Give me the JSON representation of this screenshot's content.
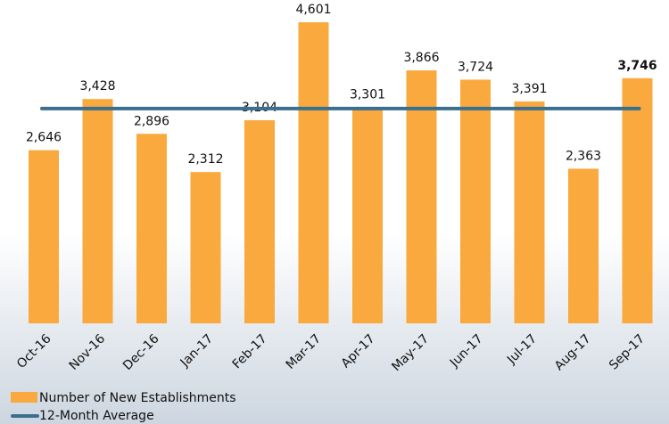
{
  "chart_data": {
    "type": "bar",
    "categories": [
      "Oct-16",
      "Nov-16",
      "Dec-16",
      "Jan-17",
      "Feb-17",
      "Mar-17",
      "Apr-17",
      "May-17",
      "Jun-17",
      "Jul-17",
      "Aug-17",
      "Sep-17"
    ],
    "series": [
      {
        "name": "Number of New Establishments",
        "color": "#f9a93e",
        "values": [
          2646,
          3428,
          2896,
          2312,
          3104,
          4601,
          3301,
          3866,
          3724,
          3391,
          2363,
          3746
        ],
        "value_labels": [
          "2,646",
          "3,428",
          "2,896",
          "2,312",
          "3,104",
          "4,601",
          "3,301",
          "3,866",
          "3,724",
          "3,391",
          "2,363",
          "3,746"
        ]
      },
      {
        "name": "12-Month Average",
        "color": "#3a6f8f",
        "type": "line",
        "value": 3281.5
      }
    ],
    "bold_last_label": true
  }
}
